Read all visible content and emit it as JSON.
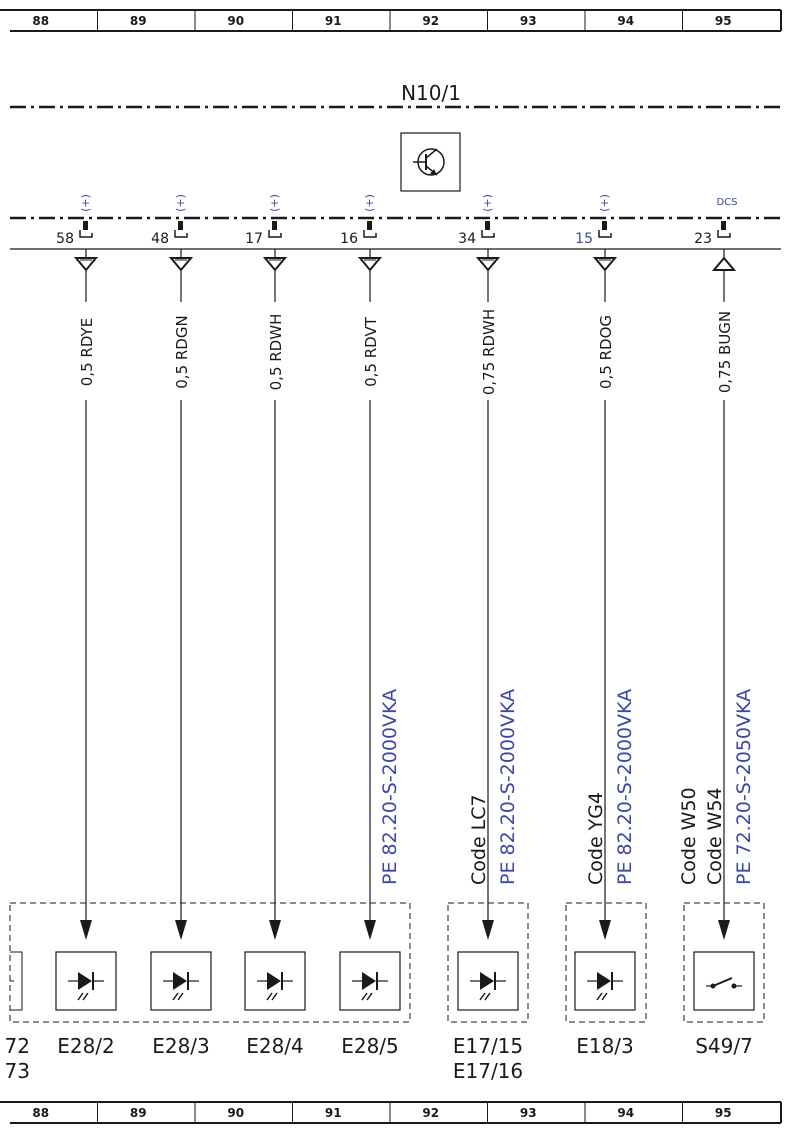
{
  "ruler": {
    "top_cells": [
      "88",
      "89",
      "90",
      "91",
      "92",
      "93",
      "94",
      "95"
    ],
    "bottom_cells": [
      "88",
      "89",
      "90",
      "91",
      "92",
      "93",
      "94",
      "95"
    ]
  },
  "module": {
    "name": "N10/1",
    "icon": "transistor-icon"
  },
  "colors": {
    "line": "#1a1a1a",
    "accent_blue": "#3b48a6"
  },
  "pins": [
    {
      "number": "58",
      "marker": "(+)",
      "wire": "0,5 RDYE",
      "direction": "out"
    },
    {
      "number": "48",
      "marker": "(+)",
      "wire": "0,5 RDGN",
      "direction": "out"
    },
    {
      "number": "17",
      "marker": "(+)",
      "wire": "0,5 RDWH",
      "direction": "out"
    },
    {
      "number": "16",
      "marker": "(+)",
      "wire": "0,5 RDVT",
      "direction": "out"
    },
    {
      "number": "34",
      "marker": "(+)",
      "wire": "0,75 RDWH",
      "direction": "out"
    },
    {
      "number": "15",
      "marker": "(+)",
      "wire": "0,5 RDOG",
      "direction": "out",
      "number_blue": true
    },
    {
      "number": "23",
      "marker": "DCS",
      "wire": "0,75 BUGN",
      "direction": "in"
    }
  ],
  "annotations": [
    {
      "code": [],
      "pe": "PE 82.20-S-2000VKA"
    },
    {
      "code": [
        "Code LC7"
      ],
      "pe": "PE 82.20-S-2000VKA"
    },
    {
      "code": [
        "Code YG4"
      ],
      "pe": "PE 82.20-S-2000VKA"
    },
    {
      "code": [
        "Code W50",
        "Code W54"
      ],
      "pe": "PE 72.20-S-2050VKA"
    }
  ],
  "components": [
    {
      "label": [
        "72",
        "73"
      ],
      "type": "partial"
    },
    {
      "label": [
        "E28/2"
      ],
      "type": "led"
    },
    {
      "label": [
        "E28/3"
      ],
      "type": "led"
    },
    {
      "label": [
        "E28/4"
      ],
      "type": "led"
    },
    {
      "label": [
        "E28/5"
      ],
      "type": "led"
    },
    {
      "label": [
        "E17/15",
        "E17/16"
      ],
      "type": "led"
    },
    {
      "label": [
        "E18/3"
      ],
      "type": "led"
    },
    {
      "label": [
        "S49/7"
      ],
      "type": "switch"
    }
  ]
}
